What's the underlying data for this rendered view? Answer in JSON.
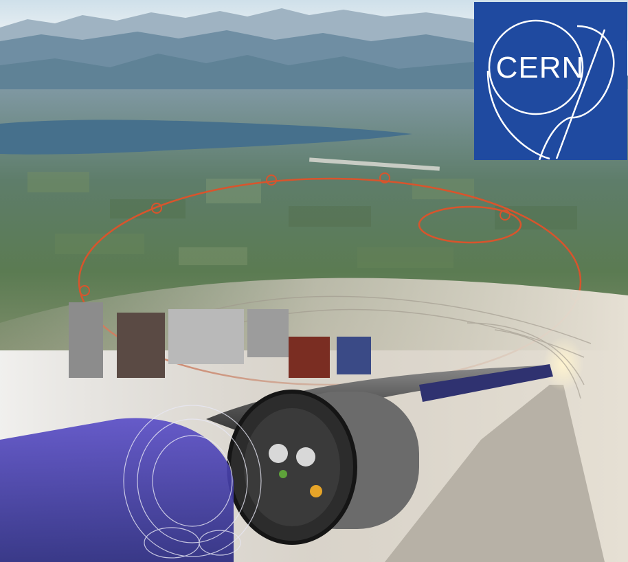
{
  "logo": {
    "text": "CERN",
    "background_color": "#1f4aa0",
    "foreground_color": "#ffffff"
  },
  "colors": {
    "sky": "#dfe9ef",
    "mountains": "#5f7d92",
    "lake": "#3f6a84",
    "land": "#5e7a5a",
    "ring": "#d9542c",
    "tunnel": "#c9c3b8",
    "magnet_pipe": "#4a4a4a",
    "magnet_blue": "#3a3aa0"
  }
}
